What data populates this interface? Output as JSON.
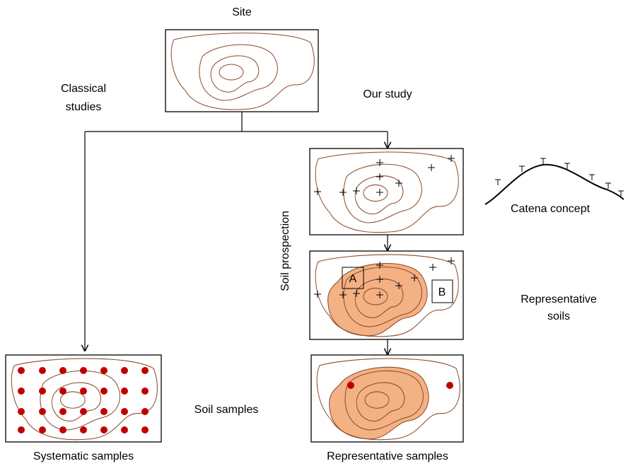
{
  "site": "Site",
  "branches": {
    "classical": [
      "Classical",
      "studies"
    ],
    "our_study": "Our study"
  },
  "steps": {
    "prospection": "Soil prospection",
    "catena": "Catena concept",
    "zones": [
      "A",
      "B"
    ],
    "representative_soils": [
      "Representative",
      "soils"
    ],
    "soil_samples": "Soil samples"
  },
  "captions": {
    "systematic": "Systematic samples",
    "representative": "Representative samples"
  }
}
